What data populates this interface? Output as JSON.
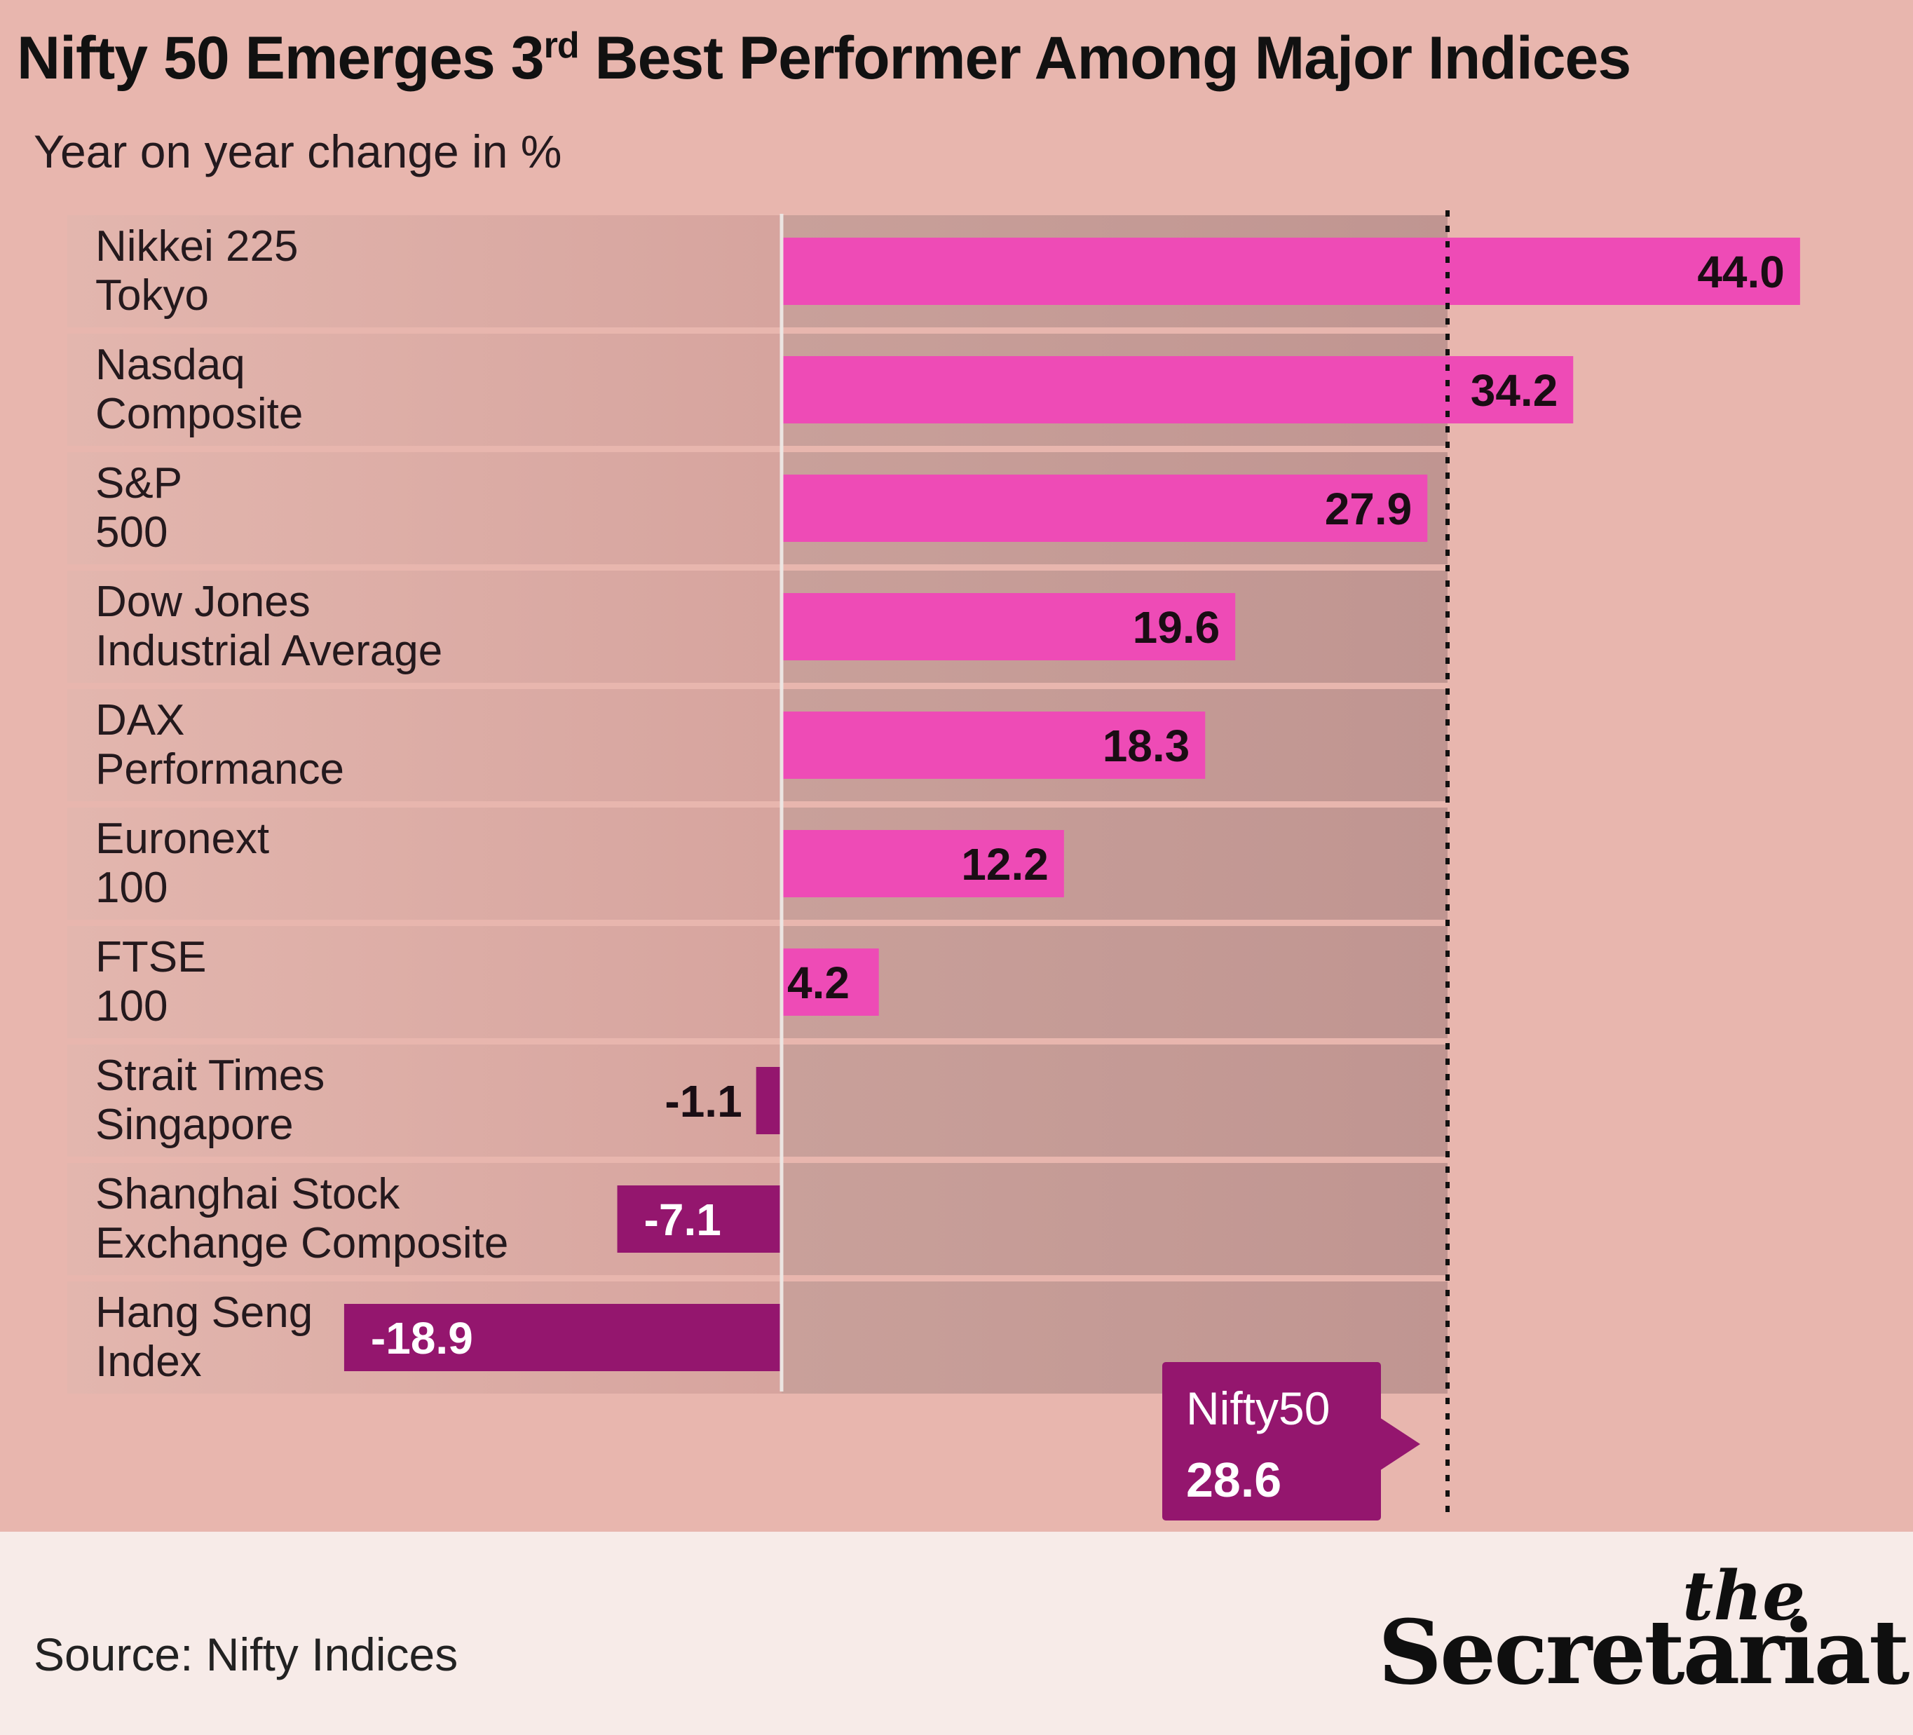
{
  "header": {
    "title_pre": "Nifty 50 Emerges 3",
    "title_sup": "rd",
    "title_post": " Best Performer Among Major Indices",
    "subtitle": "Year on year change in %"
  },
  "chart_data": {
    "type": "bar",
    "orientation": "horizontal",
    "title": "Nifty 50 Emerges 3rd Best Performer Among Major Indices",
    "subtitle": "Year on year change in %",
    "categories": [
      [
        "Nikkei 225",
        "Tokyo"
      ],
      [
        "Nasdaq",
        "Composite"
      ],
      [
        "S&P",
        "500"
      ],
      [
        "Dow Jones",
        "Industrial Average"
      ],
      [
        "DAX",
        "Performance"
      ],
      [
        "Euronext",
        "100"
      ],
      [
        "FTSE",
        "100"
      ],
      [
        "Strait Times",
        "Singapore"
      ],
      [
        "Shanghai Stock",
        "Exchange Composite"
      ],
      [
        "Hang Seng",
        "Index"
      ]
    ],
    "values": [
      44.0,
      34.2,
      27.9,
      19.6,
      18.3,
      12.2,
      4.2,
      -1.1,
      -7.1,
      -18.9
    ],
    "value_labels": [
      "44.0",
      "34.2",
      "27.9",
      "19.6",
      "18.3",
      "12.2",
      "4.2",
      "-1.1",
      "-7.1",
      "-18.9"
    ],
    "reference_line": {
      "name": "Nifty50",
      "value": 28.6,
      "label": "28.6",
      "style": "dotted"
    },
    "colors": {
      "positive": "#ee4bb6",
      "negative": "#94166e",
      "reference": "#94166e"
    }
  },
  "footer": {
    "source": "Source: Nifty Indices",
    "logo_the": "the",
    "logo_main": "Secretariat"
  }
}
